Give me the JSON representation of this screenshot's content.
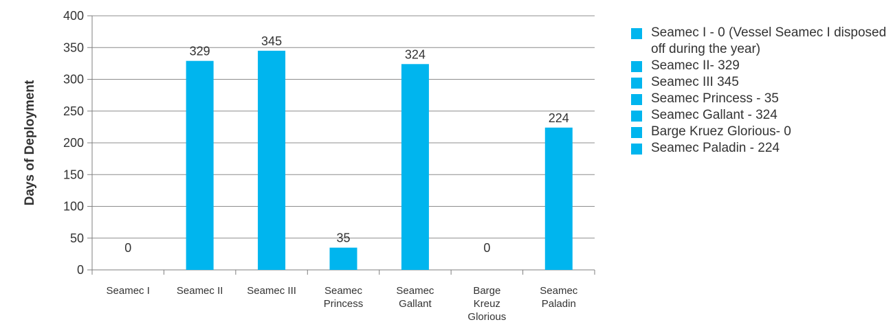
{
  "colors": {
    "bar": "#00B5EE",
    "axis": "#7f7f7f",
    "grid": "#8c8c8c",
    "text": "#333333"
  },
  "chart_data": {
    "type": "bar",
    "categories": [
      [
        "Seamec I"
      ],
      [
        "Seamec II"
      ],
      [
        "Seamec III"
      ],
      [
        "Seamec",
        "Princess"
      ],
      [
        "Seamec",
        "Gallant"
      ],
      [
        "Barge",
        "Kreuz",
        "Glorious"
      ],
      [
        "Seamec",
        "Paladin"
      ]
    ],
    "values": [
      0,
      329,
      345,
      35,
      324,
      0,
      224
    ],
    "data_labels": [
      "0",
      "329",
      "345",
      "35",
      "324",
      "0",
      "224"
    ],
    "ylabel": "Days of Deployment",
    "ylim": [
      0,
      400
    ],
    "yticks": [
      0,
      50,
      100,
      150,
      200,
      250,
      300,
      350,
      400
    ],
    "grid": true,
    "legend_position": "right",
    "legend": [
      "Seamec I - 0 (Vessel Seamec I disposed off during the year)",
      "Seamec II- 329",
      "Seamec III 345",
      "Seamec Princess - 35",
      "Seamec Gallant - 324",
      "Barge Kruez Glorious- 0",
      "Seamec Paladin - 224"
    ]
  }
}
